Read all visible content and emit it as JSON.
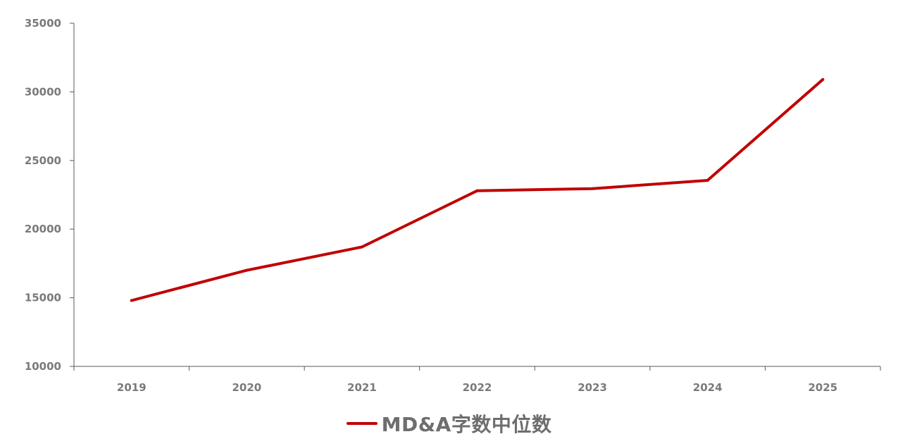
{
  "chart_data": {
    "type": "line",
    "title": "",
    "xlabel": "",
    "ylabel": "",
    "categories": [
      "2019",
      "2020",
      "2021",
      "2022",
      "2023",
      "2024",
      "2025"
    ],
    "series": [
      {
        "name": "MD&A字数中位数",
        "color": "#c00000",
        "values": [
          14800,
          17000,
          18700,
          22800,
          22950,
          23550,
          30900
        ]
      }
    ],
    "ylim": [
      10000,
      35000
    ],
    "yticks": [
      "10000",
      "15000",
      "20000",
      "25000",
      "30000",
      "35000"
    ],
    "grid": false,
    "legend_position": "bottom-center"
  }
}
